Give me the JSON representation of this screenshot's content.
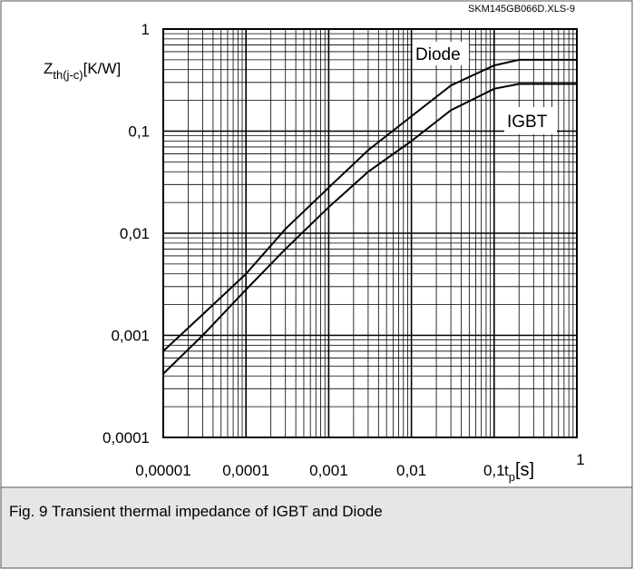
{
  "chart_data": {
    "type": "line",
    "source_tag": "SKM145GB066D.XLS-9",
    "caption": "Fig. 9 Transient thermal impedance of IGBT and Diode",
    "y_label": {
      "symbol": "Z",
      "subscript": "th(j-c)",
      "unit": "[K/W]"
    },
    "x_label": {
      "symbol": "t",
      "subscript": "p",
      "unit": "[s]"
    },
    "x_log": true,
    "y_log": true,
    "grid": true,
    "minor_grid": true,
    "xlim": [
      1e-05,
      1
    ],
    "ylim": [
      0.0001,
      1
    ],
    "xticks": [
      {
        "value": 1e-05,
        "label": "0,00001"
      },
      {
        "value": 0.0001,
        "label": "0,0001"
      },
      {
        "value": 0.001,
        "label": "0,001"
      },
      {
        "value": 0.01,
        "label": "0,01"
      },
      {
        "value": 0.1,
        "label": "0,1"
      },
      1
    ],
    "yticks": [
      {
        "value": 0.0001,
        "label": "0,0001"
      },
      {
        "value": 0.001,
        "label": "0,001"
      },
      {
        "value": 0.01,
        "label": "0,01"
      },
      {
        "value": 0.1,
        "label": "0,1"
      },
      1
    ],
    "x": [
      1e-05,
      3e-05,
      0.0001,
      0.0003,
      0.001,
      0.003,
      0.01,
      0.03,
      0.1,
      0.2,
      1
    ],
    "series": [
      {
        "name": "Diode",
        "color": "#000000",
        "values": [
          0.0007,
          0.0016,
          0.004,
          0.011,
          0.028,
          0.065,
          0.14,
          0.28,
          0.44,
          0.5,
          0.5
        ]
      },
      {
        "name": "IGBT",
        "color": "#000000",
        "values": [
          0.00042,
          0.001,
          0.0028,
          0.007,
          0.018,
          0.04,
          0.08,
          0.16,
          0.26,
          0.29,
          0.29
        ]
      }
    ]
  }
}
